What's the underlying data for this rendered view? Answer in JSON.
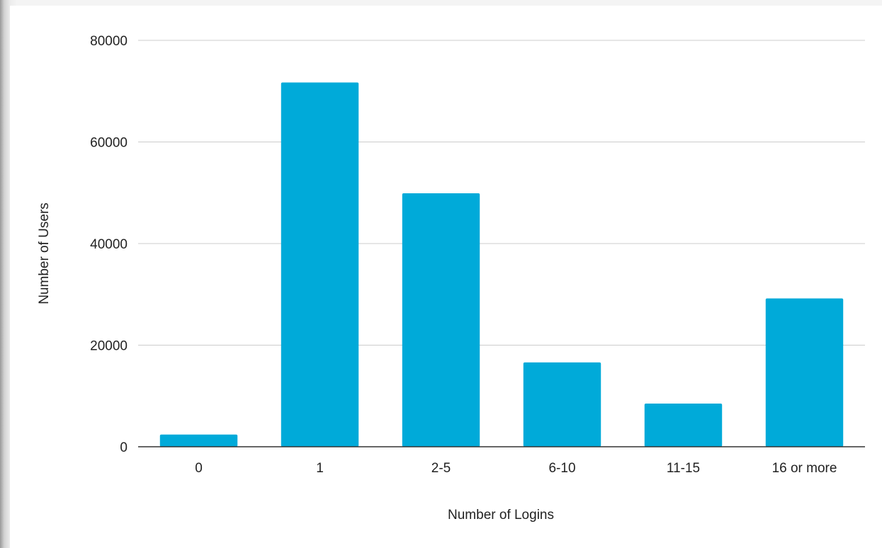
{
  "chart_data": {
    "type": "bar",
    "title": "",
    "xlabel": "Number of Logins",
    "ylabel": "Number of Users",
    "categories": [
      "0",
      "1",
      "2-5",
      "6-10",
      "11-15",
      "16 or more"
    ],
    "series": [
      {
        "values": [
          2400,
          71700,
          49900,
          16600,
          8500,
          29200
        ]
      }
    ],
    "ylim": [
      0,
      80000
    ],
    "yticks": [
      "0",
      "20000",
      "40000",
      "60000",
      "80000"
    ],
    "grid": true,
    "legend": "none",
    "bar_color": "#00aad9",
    "gridline_color": "#cccccc",
    "axis_color": "#333333"
  }
}
